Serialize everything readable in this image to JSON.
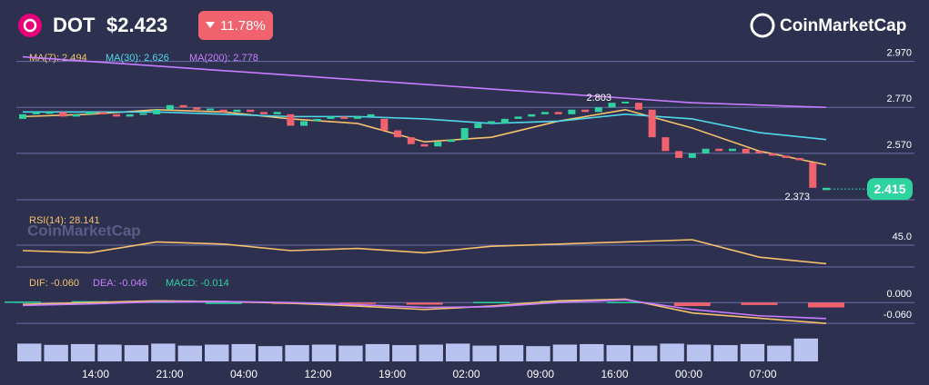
{
  "header": {
    "symbol": "DOT",
    "price": "$2.423",
    "change": "11.78%",
    "brand": "CoinMarketCap"
  },
  "chart_data": {
    "type": "candlestick",
    "xlabels": [
      "14:00",
      "21:00",
      "04:00",
      "12:00",
      "19:00",
      "02:00",
      "09:00",
      "16:00",
      "00:00",
      "07:00"
    ],
    "price": {
      "ylim": [
        2.36,
        3.02
      ],
      "yticks": [
        {
          "value": 2.97,
          "label": "2.970"
        },
        {
          "value": 2.77,
          "label": "2.770"
        },
        {
          "value": 2.57,
          "label": "2.570"
        }
      ],
      "open": [
        2.72,
        2.74,
        2.75,
        2.75,
        2.73,
        2.74,
        2.75,
        2.74,
        2.73,
        2.74,
        2.74,
        2.76,
        2.78,
        2.77,
        2.76,
        2.76,
        2.75,
        2.76,
        2.75,
        2.74,
        2.74,
        2.69,
        2.71,
        2.72,
        2.73,
        2.72,
        2.73,
        2.72,
        2.67,
        2.64,
        2.61,
        2.6,
        2.62,
        2.63,
        2.68,
        2.7,
        2.7,
        2.72,
        2.73,
        2.74,
        2.75,
        2.74,
        2.76,
        2.75,
        2.77,
        2.79,
        2.79,
        2.76,
        2.64,
        2.58,
        2.55,
        2.57,
        2.59,
        2.58,
        2.59,
        2.58,
        2.57,
        2.56,
        2.55,
        2.53,
        2.41
      ],
      "close": [
        2.74,
        2.75,
        2.75,
        2.73,
        2.74,
        2.75,
        2.74,
        2.73,
        2.74,
        2.745,
        2.76,
        2.78,
        2.77,
        2.76,
        2.765,
        2.75,
        2.76,
        2.75,
        2.74,
        2.75,
        2.69,
        2.71,
        2.72,
        2.73,
        2.72,
        2.73,
        2.74,
        2.67,
        2.64,
        2.61,
        2.6,
        2.62,
        2.63,
        2.68,
        2.7,
        2.71,
        2.72,
        2.73,
        2.74,
        2.75,
        2.74,
        2.76,
        2.75,
        2.77,
        2.79,
        2.795,
        2.76,
        2.64,
        2.58,
        2.55,
        2.57,
        2.59,
        2.58,
        2.59,
        2.57,
        2.57,
        2.56,
        2.55,
        2.54,
        2.42,
        2.42
      ],
      "ma": [
        {
          "label": "MA(7): 2.494",
          "color": "#f5c26b",
          "values": [
            2.73,
            2.74,
            2.76,
            2.75,
            2.72,
            2.7,
            2.62,
            2.64,
            2.71,
            2.76,
            2.68,
            2.58,
            2.52
          ]
        },
        {
          "label": "MA(30): 2.626",
          "color": "#4fd8e8",
          "values": [
            2.75,
            2.75,
            2.75,
            2.74,
            2.73,
            2.73,
            2.72,
            2.7,
            2.71,
            2.74,
            2.72,
            2.66,
            2.63
          ]
        },
        {
          "label": "MA(200): 2.778",
          "color": "#c77dff",
          "values": [
            2.99,
            2.97,
            2.95,
            2.93,
            2.91,
            2.89,
            2.87,
            2.85,
            2.83,
            2.81,
            2.79,
            2.78,
            2.77
          ]
        }
      ],
      "high": 2.803,
      "low": 2.373,
      "last": 2.415
    },
    "rsi": {
      "label": "RSI(14): 28.141",
      "color": "#f5c26b",
      "ylim": [
        20,
        70
      ],
      "yticks": [
        {
          "value": 45,
          "label": "45.0"
        }
      ],
      "values": [
        40,
        38,
        48,
        46,
        40,
        42,
        38,
        44,
        46,
        48,
        50,
        34,
        28
      ]
    },
    "macd": {
      "ylim": [
        -0.07,
        0.045
      ],
      "yticks": [
        {
          "value": 0,
          "label": "0.000"
        },
        {
          "value": -0.06,
          "label": "-0.060"
        }
      ],
      "lines": [
        {
          "label": "DIF: -0.060",
          "color": "#f5c26b",
          "values": [
            -0.005,
            0,
            0.005,
            0.003,
            -0.002,
            -0.01,
            -0.02,
            -0.01,
            0.005,
            0.01,
            -0.03,
            -0.045,
            -0.06
          ]
        },
        {
          "label": "DEA: -0.046",
          "color": "#c77dff",
          "values": [
            -0.008,
            -0.004,
            0.002,
            0.003,
            0,
            -0.006,
            -0.014,
            -0.012,
            0,
            0.008,
            -0.02,
            -0.038,
            -0.046
          ]
        }
      ],
      "hist_label": "MACD: -0.014",
      "hist": [
        0.003,
        0.004,
        0.003,
        0,
        -0.002,
        -0.004,
        -0.006,
        0.002,
        0.005,
        0.002,
        -0.01,
        -0.007,
        -0.014
      ]
    },
    "volume": {
      "ylim": [
        0,
        100
      ],
      "values": [
        70,
        65,
        68,
        66,
        64,
        70,
        62,
        66,
        68,
        60,
        64,
        66,
        62,
        68,
        64,
        66,
        70,
        62,
        64,
        60,
        66,
        68,
        64,
        62,
        70,
        66,
        64,
        68,
        62,
        90
      ]
    },
    "watermark": "CoinMarketCap"
  }
}
